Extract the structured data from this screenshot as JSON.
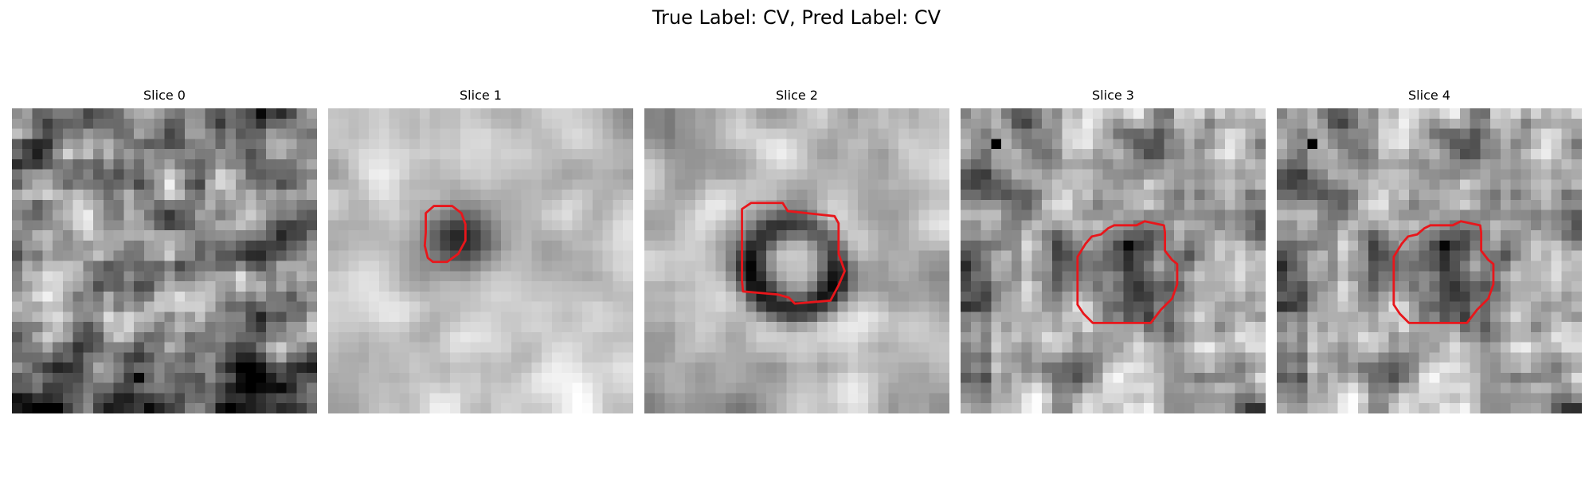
{
  "figure": {
    "suptitle": "True Label: CV, Pred Label: CV"
  },
  "panels": [
    {
      "title": "Slice 0",
      "texture": "noise",
      "has_contour": false
    },
    {
      "title": "Slice 1",
      "texture": "smooth-light",
      "has_contour": true
    },
    {
      "title": "Slice 2",
      "texture": "ring",
      "has_contour": true
    },
    {
      "title": "Slice 3",
      "texture": "dark-blob",
      "has_contour": true
    },
    {
      "title": "Slice 4",
      "texture": "dark-blob",
      "has_contour": true
    }
  ],
  "colors": {
    "contour": "#e8161b",
    "background": "#ffffff"
  }
}
